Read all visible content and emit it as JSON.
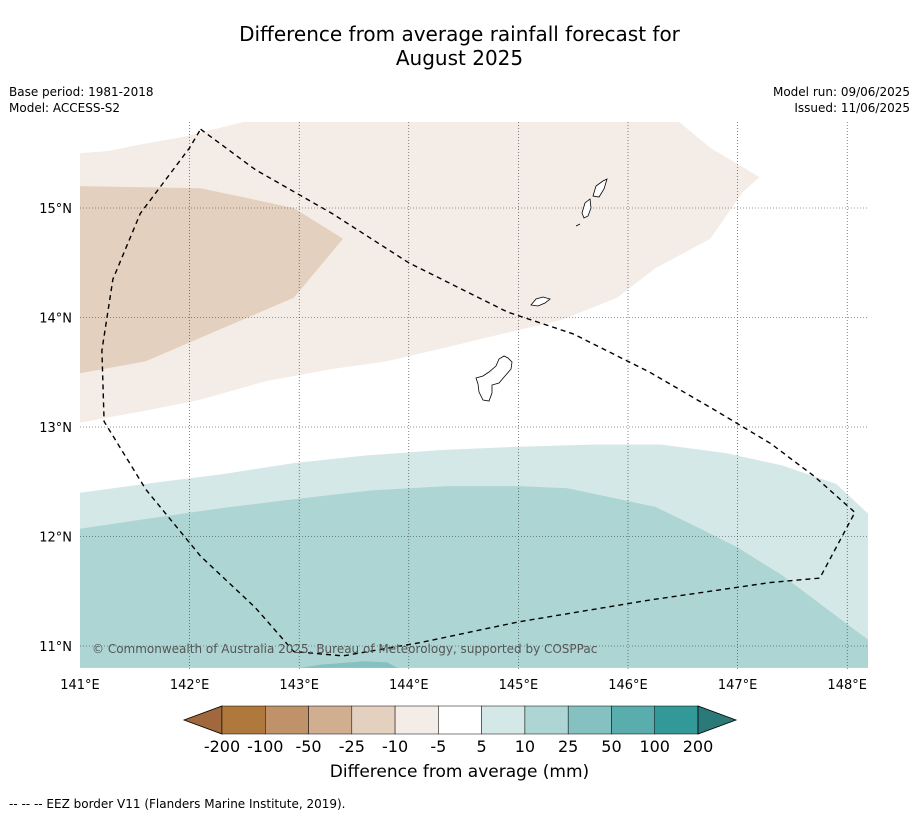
{
  "title": {
    "line1": "Difference from average rainfall forecast for",
    "line2": "August 2025"
  },
  "meta_left": {
    "base_period": "Base period: 1981-2018",
    "model": "Model: ACCESS-S2"
  },
  "meta_right": {
    "model_run": "Model run: 09/06/2025",
    "issued": "Issued: 11/06/2025"
  },
  "map": {
    "lon_range": [
      141.0,
      148.2
    ],
    "lat_range": [
      10.8,
      15.8
    ],
    "lon_ticks": [
      141,
      142,
      143,
      144,
      145,
      146,
      147,
      148
    ],
    "lon_tick_labels": [
      "141°E",
      "142°E",
      "143°E",
      "144°E",
      "145°E",
      "146°E",
      "147°E",
      "148°E"
    ],
    "lat_ticks": [
      15,
      14,
      13,
      12,
      11
    ],
    "lat_tick_labels": [
      "15°N",
      "14°N",
      "13°N",
      "12°N",
      "11°N"
    ],
    "gridlines": "dotted",
    "copyright": "© Commonwealth of Australia 2025, Bureau of Meteorology, supported by COSPPac",
    "islands": [
      "Guam",
      "Rota",
      "Tinian",
      "Saipan"
    ],
    "regions": [
      {
        "category": "-10 to -5",
        "color": "#f4ece6",
        "lonlat": [
          [
            141,
            15.5
          ],
          [
            141.25,
            15.52
          ],
          [
            141.55,
            15.58
          ],
          [
            141.95,
            15.65
          ],
          [
            142.55,
            15.8
          ],
          [
            146.45,
            15.8
          ],
          [
            146.75,
            15.55
          ],
          [
            147.2,
            15.28
          ],
          [
            147.05,
            15.15
          ],
          [
            146.75,
            14.72
          ],
          [
            146.25,
            14.45
          ],
          [
            145.9,
            14.18
          ],
          [
            145.4,
            13.98
          ],
          [
            144.85,
            13.85
          ],
          [
            144.35,
            13.73
          ],
          [
            143.8,
            13.6
          ],
          [
            143.3,
            13.53
          ],
          [
            142.7,
            13.42
          ],
          [
            142.1,
            13.25
          ],
          [
            141.6,
            13.15
          ],
          [
            141,
            13.04
          ]
        ]
      },
      {
        "category": "-25 to -10",
        "color": "#e3d0bf",
        "lonlat": [
          [
            141,
            15.2
          ],
          [
            142.1,
            15.18
          ],
          [
            142.95,
            15.0
          ],
          [
            143.4,
            14.72
          ],
          [
            142.95,
            14.18
          ],
          [
            142.25,
            13.88
          ],
          [
            141.6,
            13.6
          ],
          [
            141,
            13.49
          ]
        ]
      },
      {
        "category": "5 to 10",
        "color": "#d4e8e7",
        "lonlat": [
          [
            141,
            12.4
          ],
          [
            141.6,
            12.48
          ],
          [
            142.3,
            12.57
          ],
          [
            142.95,
            12.67
          ],
          [
            143.6,
            12.74
          ],
          [
            144.3,
            12.79
          ],
          [
            145.0,
            12.82
          ],
          [
            145.7,
            12.84
          ],
          [
            146.3,
            12.84
          ],
          [
            146.9,
            12.76
          ],
          [
            147.4,
            12.65
          ],
          [
            147.9,
            12.48
          ],
          [
            148.2,
            12.2
          ],
          [
            148.2,
            10.8
          ],
          [
            141,
            10.8
          ]
        ]
      },
      {
        "category": "10 to 25",
        "color": "#acd5d4",
        "lonlat": [
          [
            141,
            12.07
          ],
          [
            141.6,
            12.16
          ],
          [
            142.3,
            12.26
          ],
          [
            142.95,
            12.34
          ],
          [
            143.65,
            12.42
          ],
          [
            144.35,
            12.46
          ],
          [
            145.0,
            12.46
          ],
          [
            145.45,
            12.44
          ],
          [
            146.25,
            12.27
          ],
          [
            146.6,
            12.1
          ],
          [
            147.0,
            11.9
          ],
          [
            147.4,
            11.65
          ],
          [
            147.8,
            11.35
          ],
          [
            148.2,
            11.05
          ],
          [
            148.2,
            10.8
          ],
          [
            141,
            10.8
          ]
        ]
      },
      {
        "category": "25 to 50",
        "color": "#86c1c1",
        "lonlat": [
          [
            143.0,
            10.8
          ],
          [
            143.2,
            10.83
          ],
          [
            143.6,
            10.86
          ],
          [
            143.8,
            10.85
          ],
          [
            143.9,
            10.8
          ]
        ]
      }
    ],
    "eez_border": [
      [
        142.1,
        15.72
      ],
      [
        142.6,
        15.35
      ],
      [
        143.3,
        14.95
      ],
      [
        144.0,
        14.5
      ],
      [
        144.9,
        14.05
      ],
      [
        145.5,
        13.85
      ],
      [
        146.2,
        13.5
      ],
      [
        146.8,
        13.15
      ],
      [
        147.3,
        12.85
      ],
      [
        147.7,
        12.55
      ],
      [
        148.07,
        12.22
      ],
      [
        147.75,
        11.62
      ],
      [
        147.3,
        11.58
      ],
      [
        146.2,
        11.42
      ],
      [
        145.0,
        11.22
      ],
      [
        144.1,
        11.03
      ],
      [
        143.4,
        10.91
      ],
      [
        142.95,
        10.95
      ],
      [
        142.6,
        11.35
      ],
      [
        142.1,
        11.82
      ],
      [
        141.6,
        12.43
      ],
      [
        141.22,
        13.05
      ],
      [
        141.2,
        13.7
      ],
      [
        141.3,
        14.35
      ],
      [
        141.55,
        14.95
      ],
      [
        142.0,
        15.55
      ],
      [
        142.1,
        15.72
      ]
    ]
  },
  "colorbar": {
    "colors": [
      "#a0683c",
      "#af793e",
      "#bf926a",
      "#d1ae90",
      "#e3d0bf",
      "#f4ece6",
      "#ffffff",
      "#d4e8e7",
      "#acd5d4",
      "#86c1c1",
      "#5aadad",
      "#339998",
      "#2a7a79"
    ],
    "tick_labels": [
      "-200",
      "-100",
      "-50",
      "-25",
      "-10",
      "-5",
      "5",
      "10",
      "25",
      "50",
      "100",
      "200"
    ],
    "label": "Difference from average (mm)"
  },
  "footnote": "--  --  -- EEZ border V11 (Flanders Marine Institute, 2019)."
}
